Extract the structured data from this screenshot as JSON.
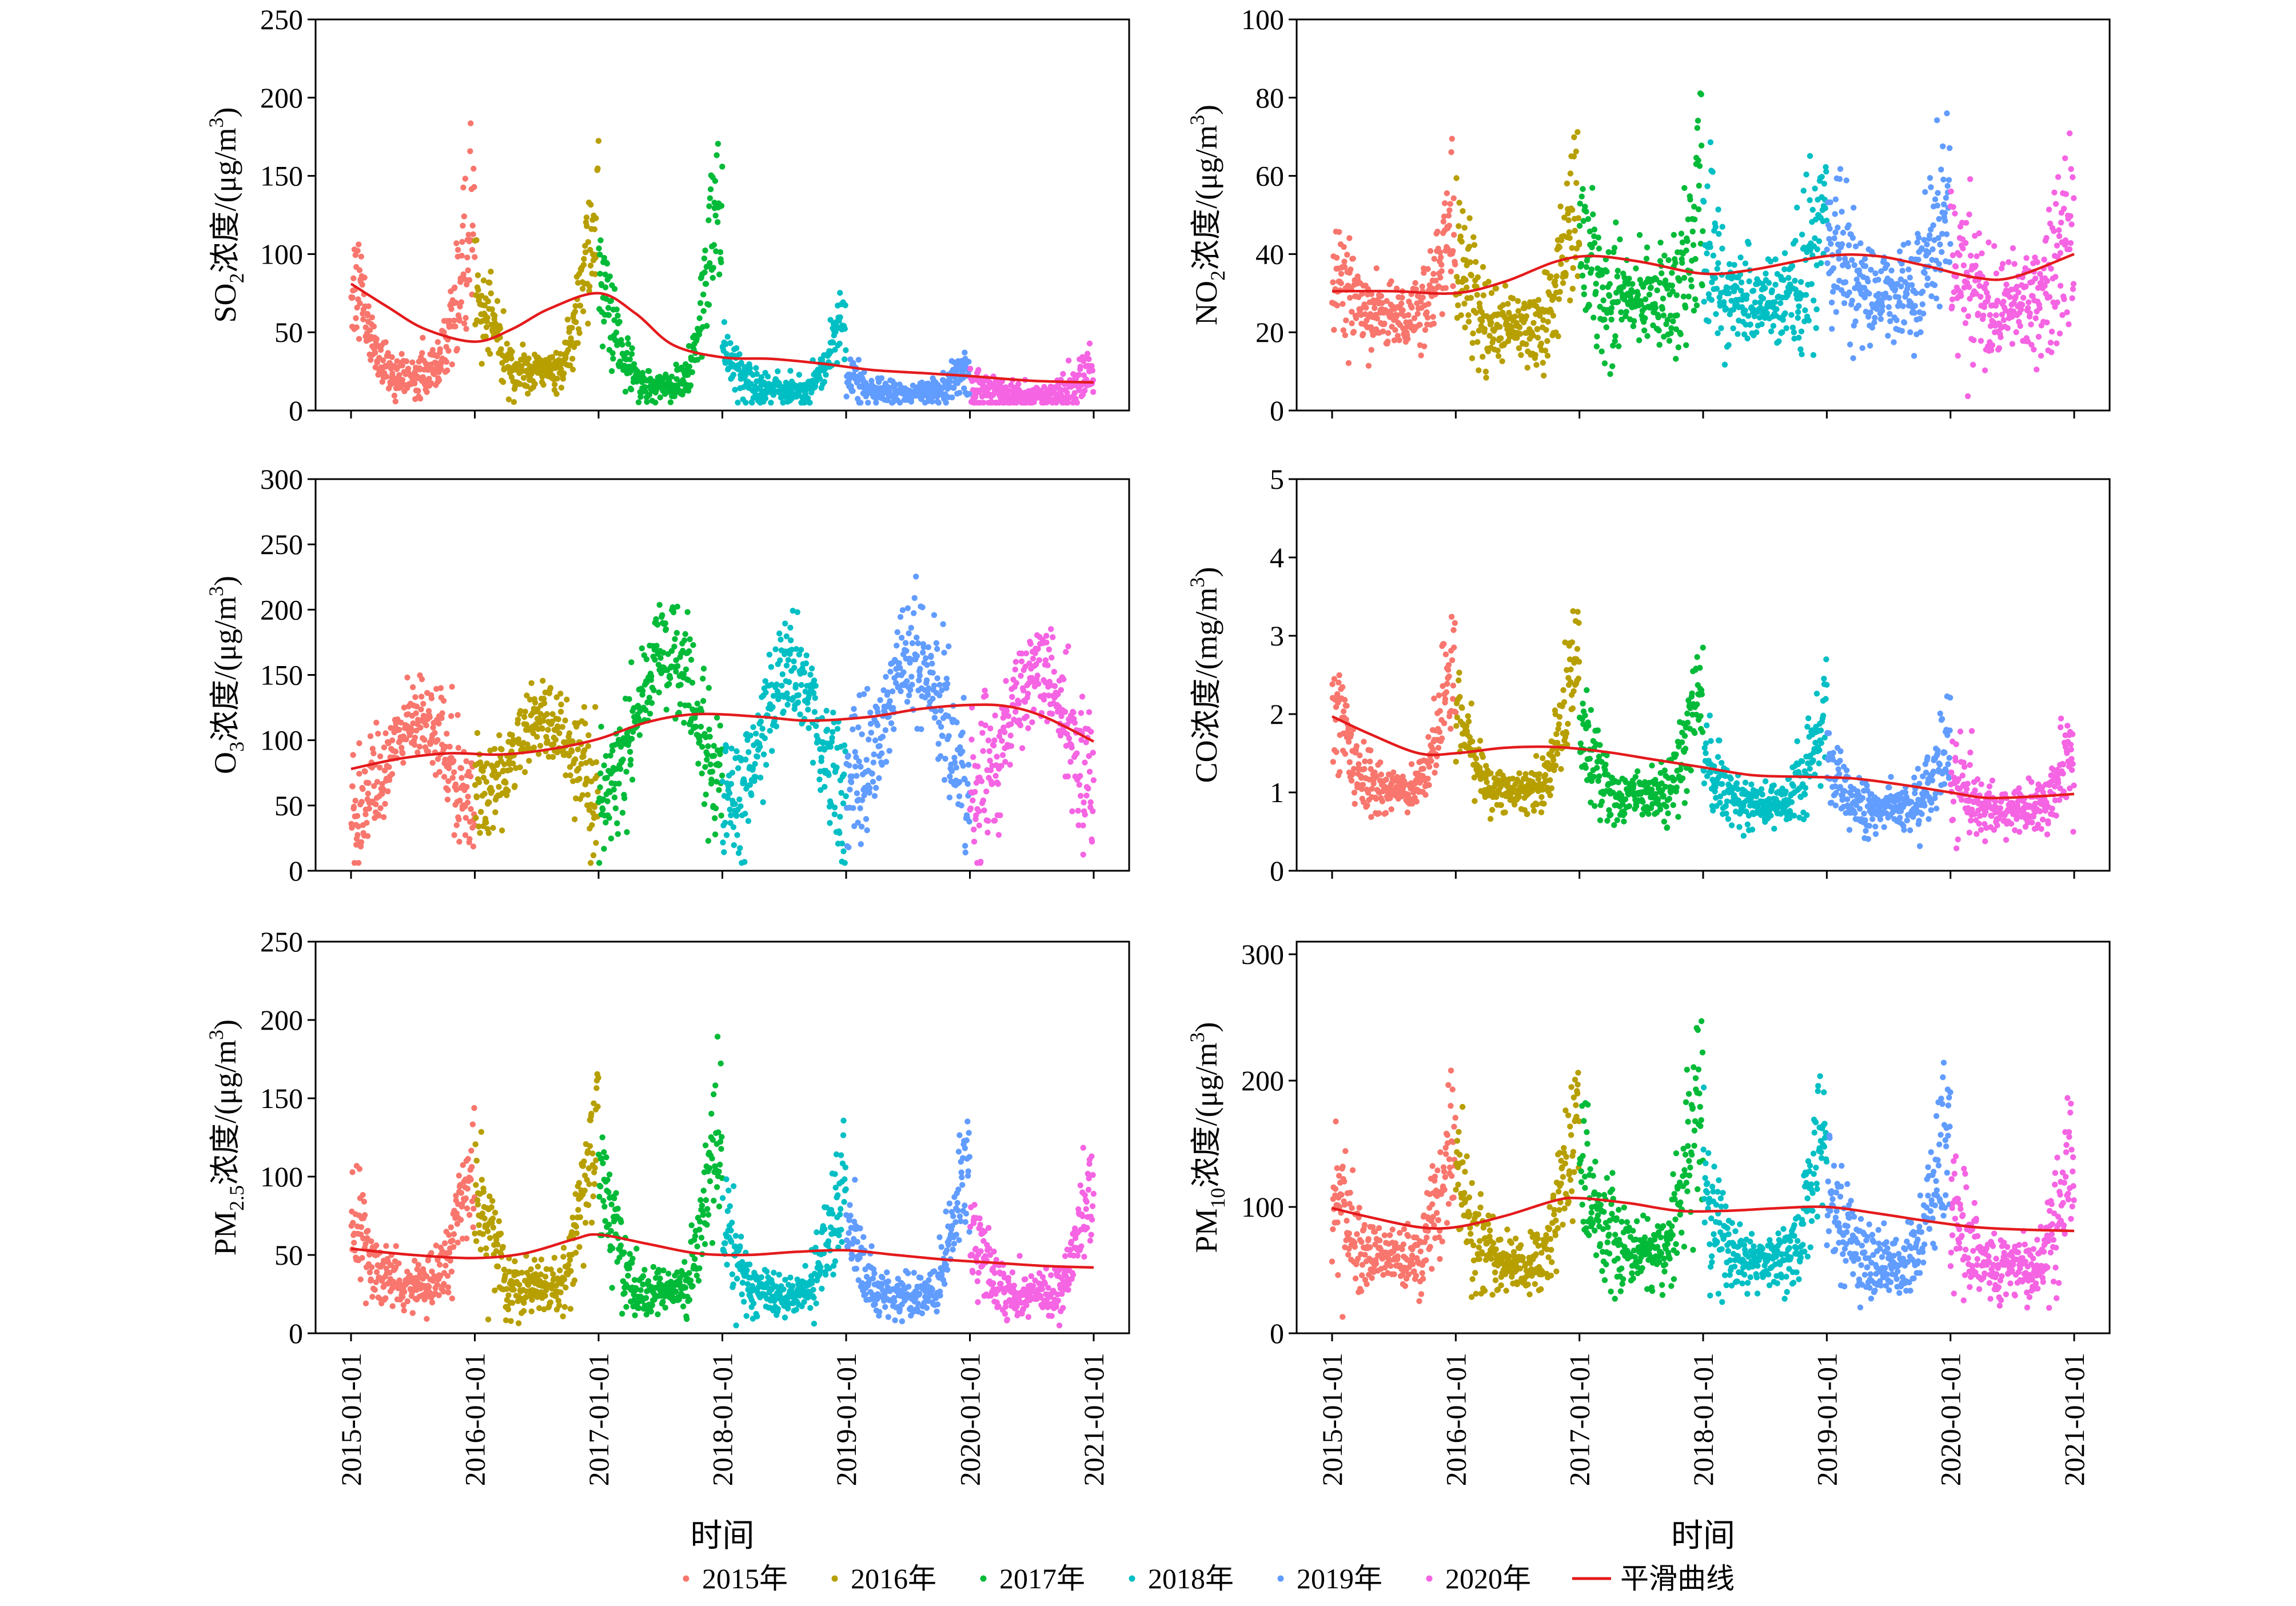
{
  "figure": {
    "legend": {
      "items": [
        {
          "label": "2015年",
          "color": "#F8766D",
          "kind": "point"
        },
        {
          "label": "2016年",
          "color": "#B79F00",
          "kind": "point"
        },
        {
          "label": "2017年",
          "color": "#00BA38",
          "kind": "point"
        },
        {
          "label": "2018年",
          "color": "#00BFC4",
          "kind": "point"
        },
        {
          "label": "2019年",
          "color": "#619CFF",
          "kind": "point"
        },
        {
          "label": "2020年",
          "color": "#F564E3",
          "kind": "point"
        },
        {
          "label": "平滑曲线",
          "color": "#E41A1C",
          "kind": "line"
        }
      ],
      "placement": "bottom"
    }
  },
  "chart_data": [
    {
      "type": "scatter",
      "ylabel_parts": [
        "SO",
        "2",
        "浓度/(μg/m",
        "3",
        ")"
      ],
      "xlabel": "",
      "ylim": [
        0,
        250
      ],
      "yticks": [
        0,
        50,
        100,
        150,
        200,
        250
      ],
      "xticks": [
        "2015-01-01",
        "2016-01-01",
        "2017-01-01",
        "2018-01-01",
        "2019-01-01",
        "2020-01-01",
        "2021-01-01"
      ],
      "series_by_year": {
        "2015": {
          "base": 22,
          "winter_amp": 150,
          "summer_amp": 0,
          "noise": 10
        },
        "2016": {
          "base": 25,
          "winter_amp": 135,
          "summer_amp": 0,
          "noise": 10
        },
        "2017": {
          "base": 16,
          "winter_amp": 160,
          "summer_amp": 0,
          "noise": 8
        },
        "2018": {
          "base": 13,
          "winter_amp": 55,
          "summer_amp": 0,
          "noise": 6
        },
        "2019": {
          "base": 11,
          "winter_amp": 20,
          "summer_amp": 0,
          "noise": 5
        },
        "2020": {
          "base": 10,
          "winter_amp": 20,
          "summer_amp": 0,
          "noise": 6
        }
      },
      "smooth_curve": [
        [
          2015.0,
          81
        ],
        [
          2015.3,
          66
        ],
        [
          2015.6,
          52
        ],
        [
          2016.0,
          44
        ],
        [
          2016.3,
          52
        ],
        [
          2016.6,
          65
        ],
        [
          2017.0,
          75
        ],
        [
          2017.3,
          62
        ],
        [
          2017.6,
          42
        ],
        [
          2018.0,
          34
        ],
        [
          2018.4,
          33
        ],
        [
          2018.8,
          30
        ],
        [
          2019.2,
          26
        ],
        [
          2019.6,
          24
        ],
        [
          2020.0,
          22
        ],
        [
          2020.5,
          19
        ],
        [
          2021.0,
          18
        ]
      ]
    },
    {
      "type": "scatter",
      "ylabel_parts": [
        "NO",
        "2",
        "浓度/(μg/m",
        "3",
        ")"
      ],
      "xlabel": "",
      "ylim": [
        0,
        100
      ],
      "yticks": [
        0,
        20,
        40,
        60,
        80,
        100
      ],
      "xticks": [
        "2015-01-01",
        "2016-01-01",
        "2017-01-01",
        "2018-01-01",
        "2019-01-01",
        "2020-01-01",
        "2021-01-01"
      ],
      "series_by_year": {
        "2015": {
          "base": 24,
          "winter_amp": 28,
          "summer_amp": 0,
          "noise": 6
        },
        "2016": {
          "base": 21,
          "winter_amp": 45,
          "summer_amp": 0,
          "noise": 7
        },
        "2017": {
          "base": 29,
          "winter_amp": 28,
          "summer_amp": 0,
          "noise": 8
        },
        "2018": {
          "base": 27,
          "winter_amp": 33,
          "summer_amp": 0,
          "noise": 8
        },
        "2019": {
          "base": 30,
          "winter_amp": 32,
          "summer_amp": 0,
          "noise": 8
        },
        "2020": {
          "base": 27,
          "winter_amp": 28,
          "summer_amp": 0,
          "noise": 9
        }
      },
      "smooth_curve": [
        [
          2015.0,
          30.5
        ],
        [
          2015.5,
          30.5
        ],
        [
          2016.0,
          30
        ],
        [
          2016.4,
          33
        ],
        [
          2016.8,
          38
        ],
        [
          2017.1,
          39.5
        ],
        [
          2017.5,
          38
        ],
        [
          2018.0,
          35
        ],
        [
          2018.4,
          36
        ],
        [
          2019.0,
          39.5
        ],
        [
          2019.4,
          39.5
        ],
        [
          2019.8,
          37
        ],
        [
          2020.2,
          34
        ],
        [
          2020.5,
          34
        ],
        [
          2021.0,
          40
        ]
      ]
    },
    {
      "type": "scatter",
      "ylabel_parts": [
        "O",
        "3",
        "浓度/(μg/m",
        "3",
        ")"
      ],
      "xlabel": "",
      "ylim": [
        0,
        300
      ],
      "yticks": [
        0,
        50,
        100,
        150,
        200,
        250,
        300
      ],
      "xticks": [
        "2015-01-01",
        "2016-01-01",
        "2017-01-01",
        "2018-01-01",
        "2019-01-01",
        "2020-01-01",
        "2021-01-01"
      ],
      "series_by_year": {
        "2015": {
          "base": 45,
          "winter_amp": 0,
          "summer_amp": 95,
          "noise": 18
        },
        "2016": {
          "base": 55,
          "winter_amp": 0,
          "summer_amp": 80,
          "noise": 18
        },
        "2017": {
          "base": 60,
          "winter_amp": 0,
          "summer_amp": 140,
          "noise": 22
        },
        "2018": {
          "base": 55,
          "winter_amp": 0,
          "summer_amp": 125,
          "noise": 22
        },
        "2019": {
          "base": 60,
          "winter_amp": 0,
          "summer_amp": 135,
          "noise": 22
        },
        "2020": {
          "base": 60,
          "winter_amp": 0,
          "summer_amp": 120,
          "noise": 22
        }
      },
      "smooth_curve": [
        [
          2015.0,
          78
        ],
        [
          2015.4,
          86
        ],
        [
          2015.8,
          90
        ],
        [
          2016.2,
          89
        ],
        [
          2016.6,
          93
        ],
        [
          2017.0,
          101
        ],
        [
          2017.4,
          114
        ],
        [
          2017.8,
          120
        ],
        [
          2018.3,
          118
        ],
        [
          2018.7,
          115
        ],
        [
          2019.2,
          118
        ],
        [
          2019.6,
          124
        ],
        [
          2020.0,
          127
        ],
        [
          2020.3,
          126
        ],
        [
          2020.6,
          118
        ],
        [
          2021.0,
          99
        ]
      ]
    },
    {
      "type": "scatter",
      "ylabel_parts": [
        "CO浓度/(mg/m",
        "3",
        ")"
      ],
      "xlabel": "",
      "ylim": [
        0,
        5
      ],
      "yticks": [
        0,
        1,
        2,
        3,
        4,
        5
      ],
      "xticks": [
        "2015-01-01",
        "2016-01-01",
        "2017-01-01",
        "2018-01-01",
        "2019-01-01",
        "2020-01-01",
        "2021-01-01"
      ],
      "series_by_year": {
        "2015": {
          "base": 1.05,
          "winter_amp": 2.3,
          "summer_amp": 0,
          "noise": 0.22
        },
        "2016": {
          "base": 1.0,
          "winter_amp": 2.3,
          "summer_amp": 0,
          "noise": 0.2
        },
        "2017": {
          "base": 0.95,
          "winter_amp": 1.9,
          "summer_amp": 0,
          "noise": 0.22
        },
        "2018": {
          "base": 0.85,
          "winter_amp": 1.5,
          "summer_amp": 0,
          "noise": 0.2
        },
        "2019": {
          "base": 0.8,
          "winter_amp": 1.1,
          "summer_amp": 0,
          "noise": 0.2
        },
        "2020": {
          "base": 0.78,
          "winter_amp": 0.9,
          "summer_amp": 0,
          "noise": 0.2
        }
      },
      "smooth_curve": [
        [
          2015.0,
          1.97
        ],
        [
          2015.3,
          1.75
        ],
        [
          2015.7,
          1.5
        ],
        [
          2016.0,
          1.5
        ],
        [
          2016.4,
          1.57
        ],
        [
          2016.8,
          1.58
        ],
        [
          2017.2,
          1.52
        ],
        [
          2017.6,
          1.42
        ],
        [
          2018.0,
          1.32
        ],
        [
          2018.4,
          1.22
        ],
        [
          2018.8,
          1.2
        ],
        [
          2019.2,
          1.18
        ],
        [
          2019.6,
          1.1
        ],
        [
          2020.0,
          1.0
        ],
        [
          2020.3,
          0.93
        ],
        [
          2020.7,
          0.95
        ],
        [
          2021.0,
          0.98
        ]
      ]
    },
    {
      "type": "scatter",
      "ylabel_parts": [
        "PM",
        "2.5",
        "浓度/(μg/m",
        "3",
        ")"
      ],
      "xlabel": "时间",
      "ylim": [
        0,
        250
      ],
      "yticks": [
        0,
        50,
        100,
        150,
        200,
        250
      ],
      "xticks": [
        "2015-01-01",
        "2016-01-01",
        "2017-01-01",
        "2018-01-01",
        "2019-01-01",
        "2020-01-01",
        "2021-01-01"
      ],
      "series_by_year": {
        "2015": {
          "base": 32,
          "winter_amp": 95,
          "summer_amp": 0,
          "noise": 12
        },
        "2016": {
          "base": 28,
          "winter_amp": 140,
          "summer_amp": 0,
          "noise": 12
        },
        "2017": {
          "base": 28,
          "winter_amp": 150,
          "summer_amp": 0,
          "noise": 12
        },
        "2018": {
          "base": 25,
          "winter_amp": 95,
          "summer_amp": 0,
          "noise": 10
        },
        "2019": {
          "base": 24,
          "winter_amp": 105,
          "summer_amp": 0,
          "noise": 10
        },
        "2020": {
          "base": 24,
          "winter_amp": 95,
          "summer_amp": 0,
          "noise": 10
        }
      },
      "smooth_curve": [
        [
          2015.0,
          54
        ],
        [
          2015.5,
          50
        ],
        [
          2016.0,
          48
        ],
        [
          2016.4,
          51
        ],
        [
          2016.8,
          60
        ],
        [
          2017.0,
          63
        ],
        [
          2017.4,
          57
        ],
        [
          2017.8,
          51
        ],
        [
          2018.2,
          50
        ],
        [
          2018.6,
          52
        ],
        [
          2019.0,
          53
        ],
        [
          2019.4,
          50
        ],
        [
          2019.8,
          47
        ],
        [
          2020.2,
          45
        ],
        [
          2020.6,
          43
        ],
        [
          2021.0,
          42
        ]
      ]
    },
    {
      "type": "scatter",
      "ylabel_parts": [
        "PM",
        "10",
        "浓度/(μg/m",
        "3",
        ")"
      ],
      "xlabel": "时间",
      "ylim": [
        0,
        310
      ],
      "yticks": [
        0,
        100,
        200,
        300
      ],
      "xticks": [
        "2015-01-01",
        "2016-01-01",
        "2017-01-01",
        "2018-01-01",
        "2019-01-01",
        "2020-01-01",
        "2021-01-01"
      ],
      "series_by_year": {
        "2015": {
          "base": 60,
          "winter_amp": 120,
          "summer_amp": 0,
          "noise": 18
        },
        "2016": {
          "base": 55,
          "winter_amp": 160,
          "summer_amp": 0,
          "noise": 18
        },
        "2017": {
          "base": 65,
          "winter_amp": 170,
          "summer_amp": 0,
          "noise": 20
        },
        "2018": {
          "base": 55,
          "winter_amp": 150,
          "summer_amp": 0,
          "noise": 18
        },
        "2019": {
          "base": 55,
          "winter_amp": 140,
          "summer_amp": 0,
          "noise": 18
        },
        "2020": {
          "base": 50,
          "winter_amp": 110,
          "summer_amp": 0,
          "noise": 18
        }
      },
      "smooth_curve": [
        [
          2015.0,
          99
        ],
        [
          2015.3,
          92
        ],
        [
          2015.7,
          84
        ],
        [
          2016.0,
          84
        ],
        [
          2016.4,
          93
        ],
        [
          2016.8,
          105
        ],
        [
          2017.0,
          107
        ],
        [
          2017.4,
          103
        ],
        [
          2017.8,
          97
        ],
        [
          2018.2,
          97
        ],
        [
          2018.6,
          99
        ],
        [
          2019.0,
          100
        ],
        [
          2019.4,
          95
        ],
        [
          2019.8,
          89
        ],
        [
          2020.2,
          84
        ],
        [
          2020.6,
          82
        ],
        [
          2021.0,
          81
        ]
      ]
    }
  ]
}
